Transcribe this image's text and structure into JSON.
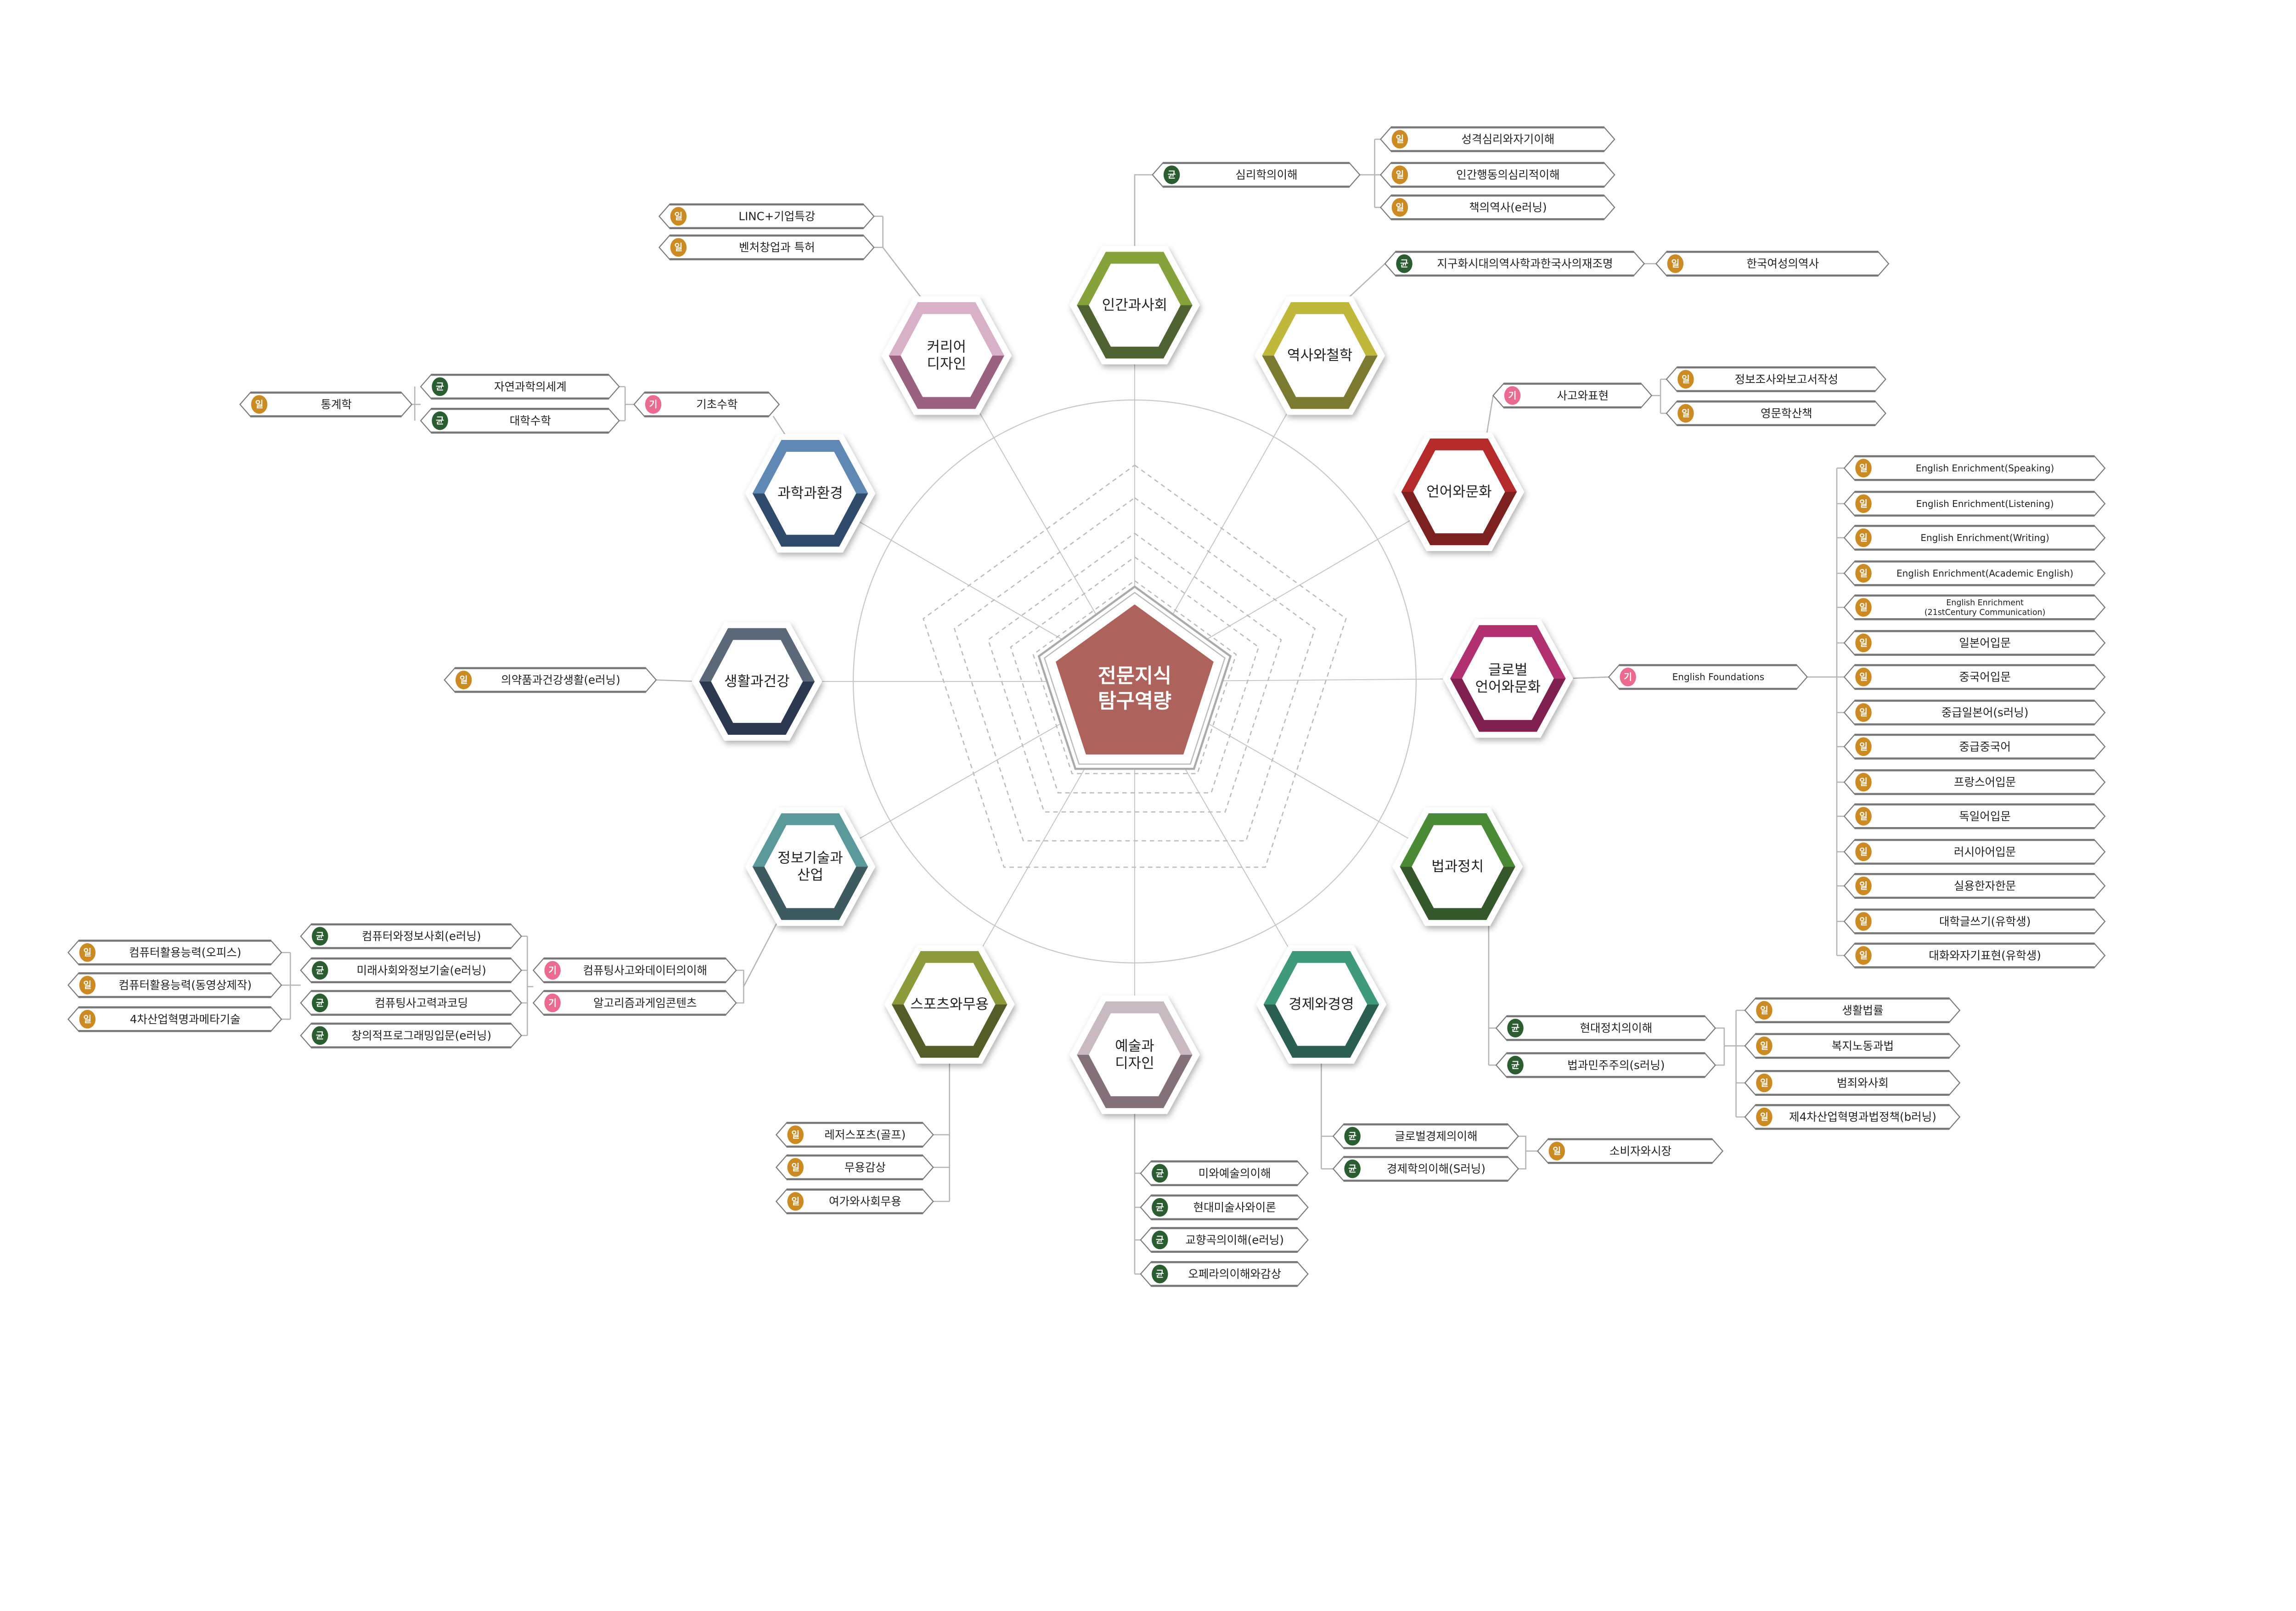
{
  "center": {
    "lines": [
      "전문지식",
      "탐구역량"
    ],
    "color": "#ad635b"
  },
  "badge_colors": {
    "일": "#cc8a22",
    "균": "#2a5e30",
    "기": "#ea6a90"
  },
  "hubs": [
    {
      "lines": [
        "인간과사회"
      ],
      "top": "#86a23a",
      "bottom": "#4f6232"
    },
    {
      "lines": [
        "역사와철학"
      ],
      "top": "#c0b83b",
      "bottom": "#7b7a30"
    },
    {
      "lines": [
        "언어와문화"
      ],
      "top": "#b52b2b",
      "bottom": "#7d2020"
    },
    {
      "lines": [
        "글로벌",
        "언어와문화"
      ],
      "top": "#b03070",
      "bottom": "#7f2050"
    },
    {
      "lines": [
        "법과정치"
      ],
      "top": "#4a8a35",
      "bottom": "#35582b"
    },
    {
      "lines": [
        "경제와경영"
      ],
      "top": "#3e9a7a",
      "bottom": "#2a5e50"
    },
    {
      "lines": [
        "예술과",
        "디자인"
      ],
      "top": "#c9b9c0",
      "bottom": "#847079"
    },
    {
      "lines": [
        "스포츠와무용"
      ],
      "top": "#8d9a3a",
      "bottom": "#545d28"
    },
    {
      "lines": [
        "정보기술과",
        "산업"
      ],
      "top": "#5a9a9a",
      "bottom": "#3d5a60"
    },
    {
      "lines": [
        "생활과건강"
      ],
      "top": "#5a6878",
      "bottom": "#2c3850"
    },
    {
      "lines": [
        "과학과환경"
      ],
      "top": "#6088b5",
      "bottom": "#2f4a6a"
    },
    {
      "lines": [
        "커리어",
        "디자인"
      ],
      "top": "#d8b0c8",
      "bottom": "#9a6080"
    }
  ],
  "tags": [
    {
      "badge": "균",
      "label": "심리학의이해"
    },
    {
      "badge": "일",
      "label": "성격심리와자기이해"
    },
    {
      "badge": "일",
      "label": "인간행동의심리적이해"
    },
    {
      "badge": "일",
      "label": "책의역사(e러닝)"
    },
    {
      "badge": "균",
      "label": "지구화시대의역사학과한국사의재조명"
    },
    {
      "badge": "일",
      "label": "한국여성의역사"
    },
    {
      "badge": "기",
      "label": "사고와표현"
    },
    {
      "badge": "일",
      "label": "정보조사와보고서작성"
    },
    {
      "badge": "일",
      "label": "영문학산책"
    },
    {
      "badge": "기",
      "label": "English Foundations"
    },
    {
      "badge": "일",
      "label": "English Enrichment(Speaking)"
    },
    {
      "badge": "일",
      "label": "English Enrichment(Listening)"
    },
    {
      "badge": "일",
      "label": "English Enrichment(Writing)"
    },
    {
      "badge": "일",
      "label": "English Enrichment(Academic English)"
    },
    {
      "badge": "일",
      "label": "English Enrichment",
      "label2": "(21stCentury Communication)"
    },
    {
      "badge": "일",
      "label": "일본어입문"
    },
    {
      "badge": "일",
      "label": "중국어입문"
    },
    {
      "badge": "일",
      "label": "중급일본어(s러닝)"
    },
    {
      "badge": "일",
      "label": "중급중국어"
    },
    {
      "badge": "일",
      "label": "프랑스어입문"
    },
    {
      "badge": "일",
      "label": "독일어입문"
    },
    {
      "badge": "일",
      "label": "러시아어입문"
    },
    {
      "badge": "일",
      "label": "실용한자한문"
    },
    {
      "badge": "일",
      "label": "대학글쓰기(유학생)"
    },
    {
      "badge": "일",
      "label": "대화와자기표현(유학생)"
    },
    {
      "badge": "균",
      "label": "현대정치의이해"
    },
    {
      "badge": "균",
      "label": "법과민주주의(s러닝)"
    },
    {
      "badge": "일",
      "label": "생활법률"
    },
    {
      "badge": "일",
      "label": "복지노동과법"
    },
    {
      "badge": "일",
      "label": "범죄와사회"
    },
    {
      "badge": "일",
      "label": "제4차산업혁명과법정책(b러닝)"
    },
    {
      "badge": "균",
      "label": "글로벌경제의이해"
    },
    {
      "badge": "균",
      "label": "경제학의이해(S러닝)"
    },
    {
      "badge": "일",
      "label": "소비자와시장"
    },
    {
      "badge": "균",
      "label": "미와예술의이해"
    },
    {
      "badge": "균",
      "label": "현대미술사와이론"
    },
    {
      "badge": "균",
      "label": "교향곡의이해(e러닝)"
    },
    {
      "badge": "균",
      "label": "오페라의이해와감상"
    },
    {
      "badge": "일",
      "label": "레저스포츠(골프)"
    },
    {
      "badge": "일",
      "label": "무용감상"
    },
    {
      "badge": "일",
      "label": "여가와사회무용"
    },
    {
      "badge": "기",
      "label": "컴퓨팅사고와데이터의이해"
    },
    {
      "badge": "기",
      "label": "알고리즘과게임콘텐츠"
    },
    {
      "badge": "균",
      "label": "컴퓨터와정보사회(e러닝)"
    },
    {
      "badge": "균",
      "label": "미래사회와정보기술(e러닝)"
    },
    {
      "badge": "균",
      "label": "컴퓨팅사고력과코딩"
    },
    {
      "badge": "균",
      "label": "창의적프로그래밍입문(e러닝)"
    },
    {
      "badge": "일",
      "label": "컴퓨터활용능력(오피스)"
    },
    {
      "badge": "일",
      "label": "컴퓨터활용능력(동영상제작)"
    },
    {
      "badge": "일",
      "label": "4차산업혁명과메타기술"
    },
    {
      "badge": "일",
      "label": "의약품과건강생활(e러닝)"
    },
    {
      "badge": "기",
      "label": "기초수학"
    },
    {
      "badge": "균",
      "label": "자연과학의세계"
    },
    {
      "badge": "균",
      "label": "대학수학"
    },
    {
      "badge": "일",
      "label": "통계학"
    },
    {
      "badge": "일",
      "label": "LINC+기업특강"
    },
    {
      "badge": "일",
      "label": "벤처창업과 특허"
    }
  ]
}
